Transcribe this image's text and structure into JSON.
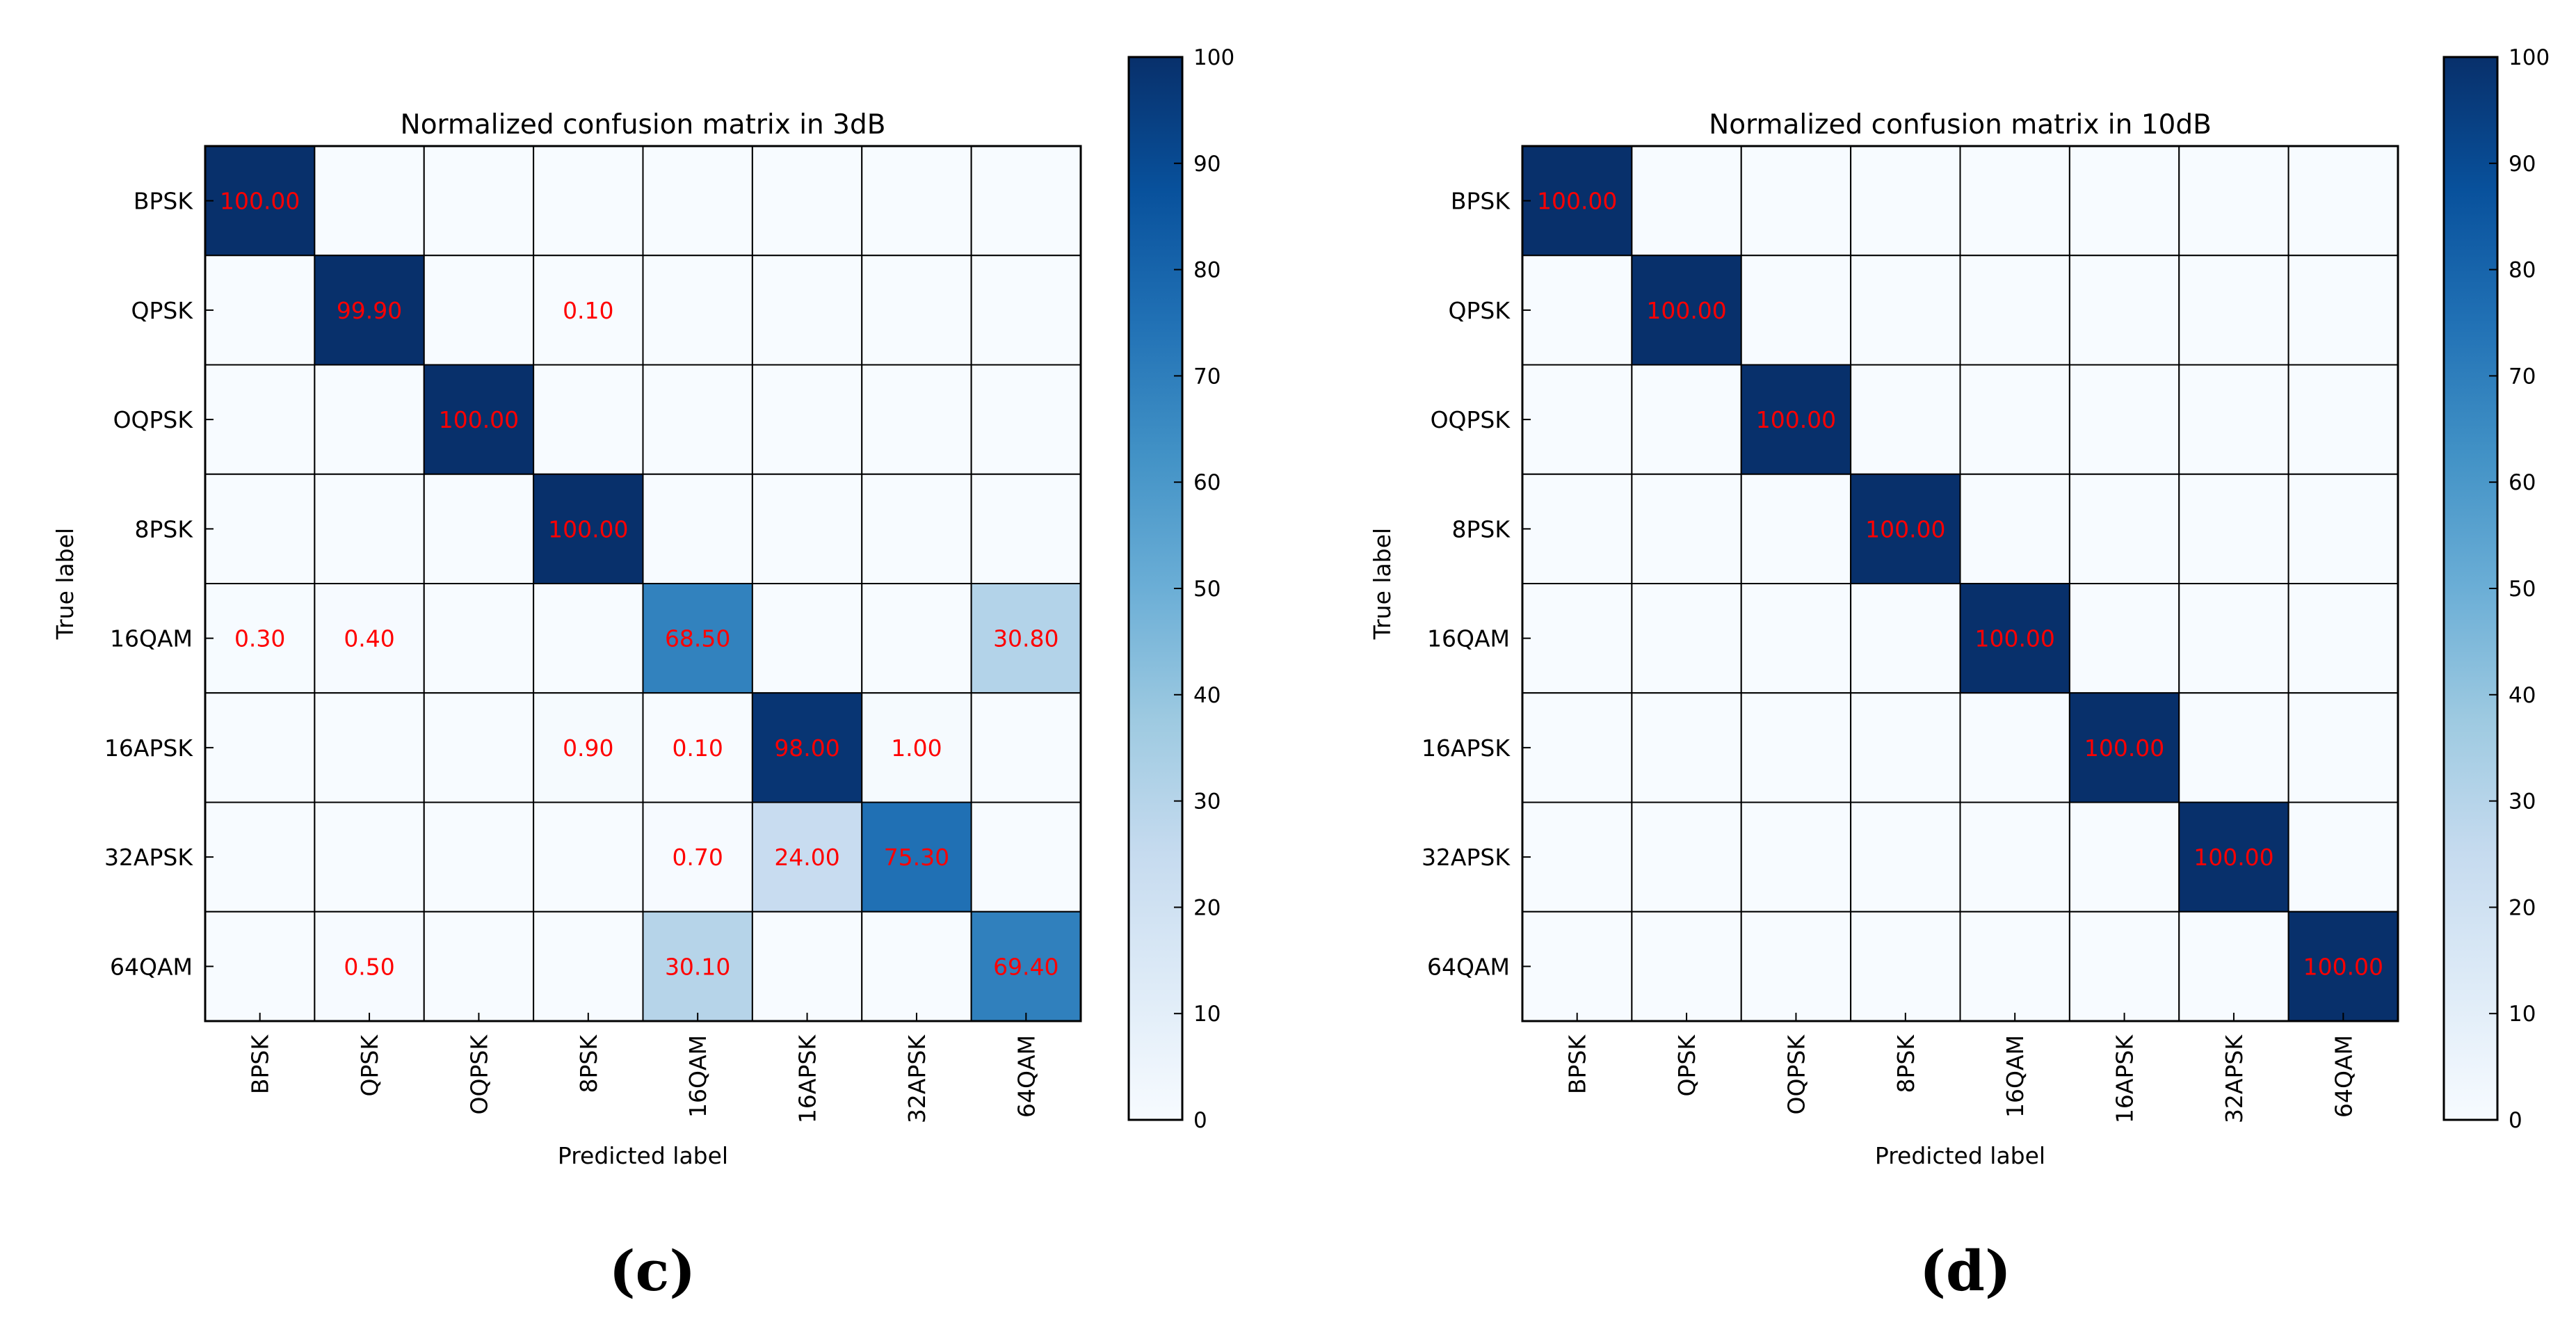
{
  "chart_data": [
    {
      "type": "heatmap",
      "title": "Normalized confusion matrix in 3dB",
      "xlabel": "Predicted label",
      "ylabel": "True label",
      "panel_label": "(c)",
      "rows": [
        "BPSK",
        "QPSK",
        "OQPSK",
        "8PSK",
        "16QAM",
        "16APSK",
        "32APSK",
        "64QAM"
      ],
      "cols": [
        "BPSK",
        "QPSK",
        "OQPSK",
        "8PSK",
        "16QAM",
        "16APSK",
        "32APSK",
        "64QAM"
      ],
      "values": [
        [
          100.0,
          null,
          null,
          null,
          null,
          null,
          null,
          null
        ],
        [
          null,
          99.9,
          null,
          0.1,
          null,
          null,
          null,
          null
        ],
        [
          null,
          null,
          100.0,
          null,
          null,
          null,
          null,
          null
        ],
        [
          null,
          null,
          null,
          100.0,
          null,
          null,
          null,
          null
        ],
        [
          0.3,
          0.4,
          null,
          null,
          68.5,
          null,
          null,
          30.8
        ],
        [
          null,
          null,
          null,
          0.9,
          0.1,
          98.0,
          1.0,
          null
        ],
        [
          null,
          null,
          null,
          null,
          0.7,
          24.0,
          75.3,
          null
        ],
        [
          null,
          0.5,
          null,
          null,
          30.1,
          null,
          null,
          69.4
        ]
      ],
      "colorbar": {
        "min": 0,
        "max": 100,
        "ticks": [
          "0",
          "10",
          "20",
          "30",
          "40",
          "50",
          "60",
          "70",
          "80",
          "90",
          "100"
        ]
      },
      "colormap": "Blues",
      "annotation_color": "#ff0000"
    },
    {
      "type": "heatmap",
      "title": "Normalized confusion matrix in 10dB",
      "xlabel": "Predicted label",
      "ylabel": "True label",
      "panel_label": "(d)",
      "rows": [
        "BPSK",
        "QPSK",
        "OQPSK",
        "8PSK",
        "16QAM",
        "16APSK",
        "32APSK",
        "64QAM"
      ],
      "cols": [
        "BPSK",
        "QPSK",
        "OQPSK",
        "8PSK",
        "16QAM",
        "16APSK",
        "32APSK",
        "64QAM"
      ],
      "values": [
        [
          100.0,
          null,
          null,
          null,
          null,
          null,
          null,
          null
        ],
        [
          null,
          100.0,
          null,
          null,
          null,
          null,
          null,
          null
        ],
        [
          null,
          null,
          100.0,
          null,
          null,
          null,
          null,
          null
        ],
        [
          null,
          null,
          null,
          100.0,
          null,
          null,
          null,
          null
        ],
        [
          null,
          null,
          null,
          null,
          100.0,
          null,
          null,
          null
        ],
        [
          null,
          null,
          null,
          null,
          null,
          100.0,
          null,
          null
        ],
        [
          null,
          null,
          null,
          null,
          null,
          null,
          100.0,
          null
        ],
        [
          null,
          null,
          null,
          null,
          null,
          null,
          null,
          100.0
        ]
      ],
      "colorbar": {
        "min": 0,
        "max": 100,
        "ticks": [
          "0",
          "10",
          "20",
          "30",
          "40",
          "50",
          "60",
          "70",
          "80",
          "90",
          "100"
        ]
      },
      "colormap": "Blues",
      "annotation_color": "#ff0000"
    }
  ]
}
